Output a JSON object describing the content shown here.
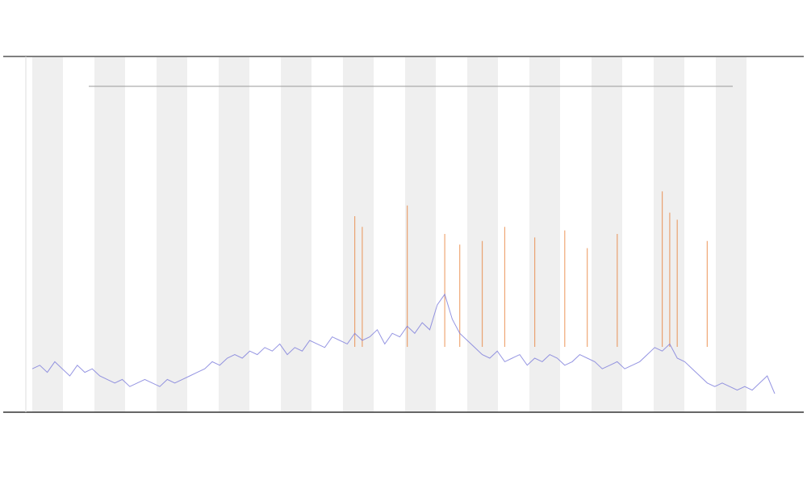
{
  "chart_data": {
    "type": "line",
    "ylim": [
      0,
      100
    ],
    "series": [
      {
        "color": "#7b7bdb",
        "values": [
          12,
          13,
          11,
          14,
          12,
          10,
          13,
          11,
          12,
          10,
          9,
          8,
          9,
          7,
          8,
          9,
          8,
          7,
          9,
          8,
          9,
          10,
          11,
          12,
          14,
          13,
          15,
          16,
          15,
          17,
          16,
          18,
          17,
          19,
          16,
          18,
          17,
          20,
          19,
          18,
          21,
          20,
          19,
          22,
          20,
          21,
          23,
          19,
          22,
          21,
          24,
          22,
          25,
          23,
          30,
          33,
          26,
          22,
          20,
          18,
          16,
          15,
          17,
          14,
          15,
          16,
          13,
          15,
          14,
          16,
          15,
          13,
          14,
          16,
          15,
          14,
          12,
          13,
          14,
          12,
          13,
          14,
          16,
          18,
          17,
          19,
          15,
          14,
          12,
          10,
          8,
          7,
          8,
          7,
          6,
          7,
          6,
          8,
          10,
          5
        ]
      },
      {
        "color": "#e8823a",
        "values": [
          null,
          null,
          null,
          null,
          null,
          null,
          null,
          null,
          null,
          null,
          null,
          null,
          null,
          null,
          null,
          null,
          null,
          null,
          null,
          null,
          null,
          null,
          null,
          null,
          null,
          null,
          null,
          null,
          null,
          null,
          null,
          null,
          null,
          null,
          null,
          null,
          null,
          null,
          null,
          null,
          null,
          null,
          null,
          55,
          52,
          null,
          null,
          null,
          null,
          null,
          58,
          null,
          null,
          null,
          null,
          50,
          null,
          47,
          null,
          null,
          48,
          null,
          null,
          52,
          null,
          null,
          null,
          49,
          null,
          null,
          null,
          51,
          null,
          null,
          46,
          null,
          null,
          null,
          50,
          null,
          null,
          null,
          null,
          null,
          62,
          56,
          54,
          null,
          null,
          null,
          48,
          null,
          null,
          null,
          null,
          null,
          null,
          null,
          null,
          null
        ]
      }
    ]
  }
}
